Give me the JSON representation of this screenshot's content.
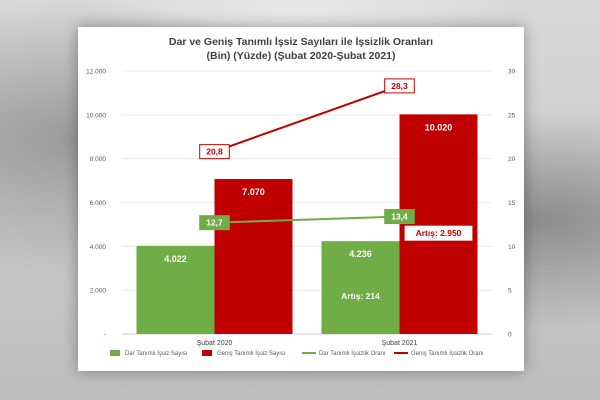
{
  "chart_data": {
    "type": "bar",
    "title": "Dar ve Geniş Tanımlı İşsiz Sayıları ile İşsizlik Oranları",
    "subtitle": "(Bin) (Yüzde) (Şubat 2020-Şubat 2021)",
    "categories": [
      "Şubat 2020",
      "Şubat 2021"
    ],
    "y_left": {
      "range": [
        0,
        12000
      ],
      "ticks": [
        "-",
        "2.000",
        "4.000",
        "6.000",
        "8.000",
        "10.000",
        "12.000"
      ],
      "tick_values": [
        0,
        2000,
        4000,
        6000,
        8000,
        10000,
        12000
      ]
    },
    "y_right": {
      "range": [
        0,
        30
      ],
      "ticks": [
        "0",
        "5",
        "10",
        "15",
        "20",
        "25",
        "30"
      ],
      "tick_values": [
        0,
        5,
        10,
        15,
        20,
        25,
        30
      ]
    },
    "grid": true,
    "series": [
      {
        "name": "Dar Tanımlı İşsiz Sayısı",
        "kind": "bar",
        "axis": "left",
        "color": "#70ad47",
        "values": [
          4022,
          4236
        ],
        "labels": [
          "4.022",
          "4.236"
        ]
      },
      {
        "name": "Geniş Tanımlı İşsiz Sayısı",
        "kind": "bar",
        "axis": "left",
        "color": "#c00000",
        "values": [
          7070,
          10020
        ],
        "labels": [
          "7.070",
          "10.020"
        ]
      },
      {
        "name": "Dar Tanımlı İşsizlik Oranı",
        "kind": "line",
        "axis": "right",
        "color": "#70ad47",
        "values": [
          12.7,
          13.4
        ],
        "labels": [
          "12,7",
          "13,4"
        ]
      },
      {
        "name": "Geniş Tanımlı İşsizlik Oranı",
        "kind": "line",
        "axis": "right",
        "color": "#c00000",
        "values": [
          20.8,
          28.3
        ],
        "labels": [
          "20,8",
          "28,3"
        ]
      }
    ],
    "annotations": [
      {
        "text": "Artış: 214",
        "color": "#70ad47"
      },
      {
        "text": "Artış: 2.950",
        "color": "#c00000"
      }
    ],
    "legend_position": "bottom"
  }
}
